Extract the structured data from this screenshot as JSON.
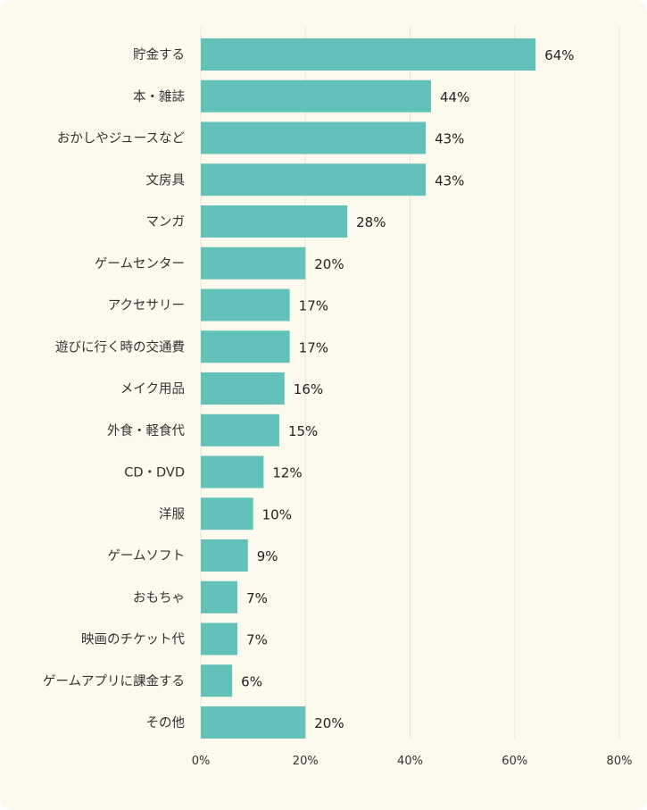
{
  "chart_data": {
    "type": "bar",
    "orientation": "horizontal",
    "categories": [
      "貯金する",
      "本・雑誌",
      "おかしやジュースなど",
      "文房具",
      "マンガ",
      "ゲームセンター",
      "アクセサリー",
      "遊びに行く時の交通費",
      "メイク用品",
      "外食・軽食代",
      "CD・DVD",
      "洋服",
      "ゲームソフト",
      "おもちゃ",
      "映画のチケット代",
      "ゲームアプリに課金する",
      "その他"
    ],
    "values": [
      64,
      44,
      43,
      43,
      28,
      20,
      17,
      17,
      16,
      15,
      12,
      10,
      9,
      7,
      7,
      6,
      20
    ],
    "value_labels": [
      "64%",
      "44%",
      "43%",
      "43%",
      "28%",
      "20%",
      "17%",
      "17%",
      "16%",
      "15%",
      "12%",
      "10%",
      "9%",
      "7%",
      "7%",
      "6%",
      "20%"
    ],
    "xlim": [
      0,
      80
    ],
    "x_ticks": [
      "0%",
      "20%",
      "40%",
      "60%",
      "80%"
    ],
    "grid": true,
    "colors": {
      "bar": "#62c1b9",
      "background": "#fcfaec",
      "grid": "#e8e6da"
    }
  }
}
